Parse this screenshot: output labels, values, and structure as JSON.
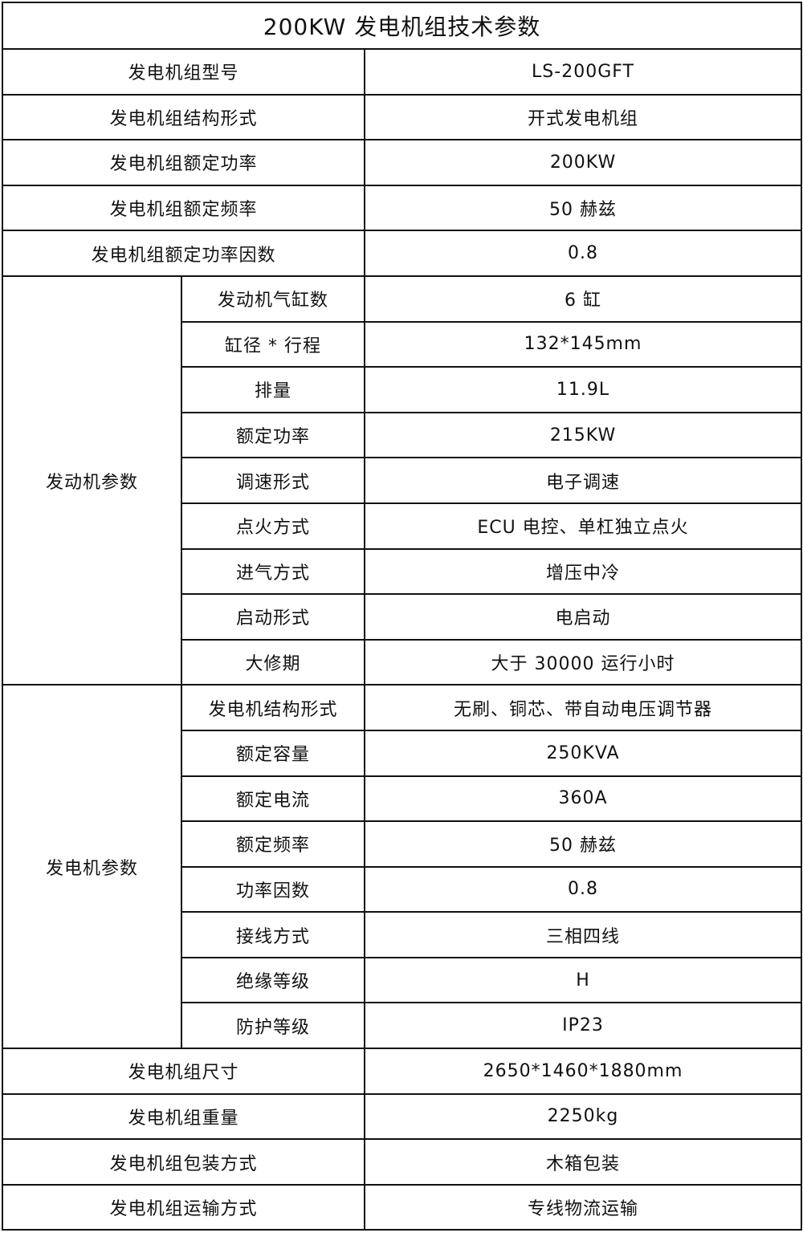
{
  "title": "200KW 发电机组技术参数",
  "top_rows": [
    {
      "label": "发电机组型号",
      "value": "LS-200GFT"
    },
    {
      "label": "发电机组结构形式",
      "value": "开式发电机组"
    },
    {
      "label": "发电机组额定功率",
      "value": "200KW"
    },
    {
      "label": "发电机组额定频率",
      "value": "50 赫兹"
    },
    {
      "label": "发电机组额定功率因数",
      "value": "0.8"
    }
  ],
  "engine": {
    "group": "发动机参数",
    "rows": [
      {
        "label": "发动机气缸数",
        "value": "6 缸"
      },
      {
        "label": "缸径 * 行程",
        "value": "132*145mm"
      },
      {
        "label": "排量",
        "value": "11.9L"
      },
      {
        "label": "额定功率",
        "value": "215KW"
      },
      {
        "label": "调速形式",
        "value": "电子调速"
      },
      {
        "label": "点火方式",
        "value": "ECU 电控、单杠独立点火"
      },
      {
        "label": "进气方式",
        "value": "增压中冷"
      },
      {
        "label": "启动形式",
        "value": "电启动"
      },
      {
        "label": "大修期",
        "value": "大于 30000 运行小时"
      }
    ]
  },
  "generator": {
    "group": "发电机参数",
    "rows": [
      {
        "label": "发电机结构形式",
        "value": "无刷、铜芯、带自动电压调节器"
      },
      {
        "label": "额定容量",
        "value": "250KVA"
      },
      {
        "label": "额定电流",
        "value": "360A"
      },
      {
        "label": "额定频率",
        "value": "50 赫兹"
      },
      {
        "label": "功率因数",
        "value": "0.8"
      },
      {
        "label": "接线方式",
        "value": "三相四线"
      },
      {
        "label": "绝缘等级",
        "value": "H"
      },
      {
        "label": "防护等级",
        "value": "IP23"
      }
    ]
  },
  "bottom_rows": [
    {
      "label": "发电机组尺寸",
      "value": "2650*1460*1880mm"
    },
    {
      "label": "发电机组重量",
      "value": "2250kg"
    },
    {
      "label": "发电机组包装方式",
      "value": "木箱包装"
    },
    {
      "label": "发电机组运输方式",
      "value": "专线物流运输"
    }
  ]
}
